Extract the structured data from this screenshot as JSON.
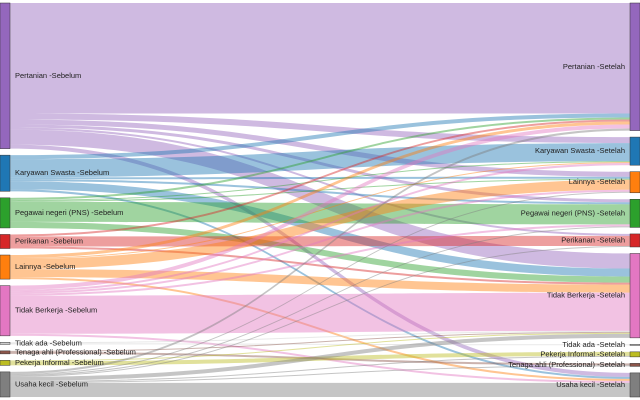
{
  "chart_data": {
    "type": "sankey",
    "nodes": [
      {
        "name": "Pertanian -Sebelum",
        "color": "#9467bd"
      },
      {
        "name": "Karyawan Swasta -Sebelum",
        "color": "#1f77b4"
      },
      {
        "name": "Pegawai negeri (PNS) -Sebelum",
        "color": "#2ca02c"
      },
      {
        "name": "Perikanan -Sebelum",
        "color": "#d62728"
      },
      {
        "name": "Lainnya -Sebelum",
        "color": "#ff7f0e"
      },
      {
        "name": "Tidak Berkerja -Sebelum",
        "color": "#e377c2"
      },
      {
        "name": "Tidak ada -Sebelum",
        "color": "#cccccc"
      },
      {
        "name": "Tenaga ahli (Professional) -Sebelum",
        "color": "#8c564b"
      },
      {
        "name": "Pekerja Informal -Sebelum",
        "color": "#bcbd22"
      },
      {
        "name": "Usaha kecil -Sebelum",
        "color": "#7f7f7f"
      },
      {
        "name": "Pertanian -Setelah",
        "color": "#9467bd"
      },
      {
        "name": "Karyawan Swasta -Setelah",
        "color": "#1f77b4"
      },
      {
        "name": "Lainnya -Setelah",
        "color": "#ff7f0e"
      },
      {
        "name": "Pegawai negeri (PNS) -Setelah",
        "color": "#2ca02c"
      },
      {
        "name": "Perikanan -Setelah",
        "color": "#d62728"
      },
      {
        "name": "Tidak Berkerja -Setelah",
        "color": "#e377c2"
      },
      {
        "name": "Tidak ada -Setelah",
        "color": "#cccccc"
      },
      {
        "name": "Pekerja Informal -Setelah",
        "color": "#bcbd22"
      },
      {
        "name": "Tenaga ahli (Professional) -Setelah",
        "color": "#8c564b"
      },
      {
        "name": "Usaha kecil -Setelah",
        "color": "#7f7f7f"
      }
    ],
    "links": [
      {
        "source": 0,
        "target": 10,
        "value": 110
      },
      {
        "source": 0,
        "target": 11,
        "value": 6
      },
      {
        "source": 0,
        "target": 12,
        "value": 5
      },
      {
        "source": 0,
        "target": 13,
        "value": 3
      },
      {
        "source": 0,
        "target": 14,
        "value": 2
      },
      {
        "source": 0,
        "target": 15,
        "value": 15
      },
      {
        "source": 0,
        "target": 19,
        "value": 4
      },
      {
        "source": 1,
        "target": 10,
        "value": 4
      },
      {
        "source": 1,
        "target": 11,
        "value": 18
      },
      {
        "source": 1,
        "target": 12,
        "value": 2
      },
      {
        "source": 1,
        "target": 13,
        "value": 2
      },
      {
        "source": 1,
        "target": 15,
        "value": 8
      },
      {
        "source": 1,
        "target": 19,
        "value": 2
      },
      {
        "source": 2,
        "target": 10,
        "value": 2
      },
      {
        "source": 2,
        "target": 11,
        "value": 1
      },
      {
        "source": 2,
        "target": 12,
        "value": 1
      },
      {
        "source": 2,
        "target": 13,
        "value": 20
      },
      {
        "source": 2,
        "target": 15,
        "value": 6
      },
      {
        "source": 3,
        "target": 10,
        "value": 2
      },
      {
        "source": 3,
        "target": 14,
        "value": 10
      },
      {
        "source": 3,
        "target": 15,
        "value": 2
      },
      {
        "source": 4,
        "target": 10,
        "value": 3
      },
      {
        "source": 4,
        "target": 11,
        "value": 1
      },
      {
        "source": 4,
        "target": 12,
        "value": 10
      },
      {
        "source": 4,
        "target": 15,
        "value": 8
      },
      {
        "source": 4,
        "target": 19,
        "value": 2
      },
      {
        "source": 5,
        "target": 10,
        "value": 4
      },
      {
        "source": 5,
        "target": 11,
        "value": 2
      },
      {
        "source": 5,
        "target": 12,
        "value": 2
      },
      {
        "source": 5,
        "target": 13,
        "value": 2
      },
      {
        "source": 5,
        "target": 15,
        "value": 38
      },
      {
        "source": 5,
        "target": 19,
        "value": 2
      },
      {
        "source": 6,
        "target": 15,
        "value": 1
      },
      {
        "source": 6,
        "target": 16,
        "value": 1
      },
      {
        "source": 7,
        "target": 15,
        "value": 1
      },
      {
        "source": 7,
        "target": 18,
        "value": 2
      },
      {
        "source": 8,
        "target": 15,
        "value": 1
      },
      {
        "source": 8,
        "target": 17,
        "value": 4
      },
      {
        "source": 9,
        "target": 10,
        "value": 2
      },
      {
        "source": 9,
        "target": 12,
        "value": 1
      },
      {
        "source": 9,
        "target": 13,
        "value": 1
      },
      {
        "source": 9,
        "target": 14,
        "value": 1
      },
      {
        "source": 9,
        "target": 15,
        "value": 4
      },
      {
        "source": 9,
        "target": 17,
        "value": 1
      },
      {
        "source": 9,
        "target": 18,
        "value": 1
      },
      {
        "source": 9,
        "target": 19,
        "value": 14
      }
    ]
  }
}
